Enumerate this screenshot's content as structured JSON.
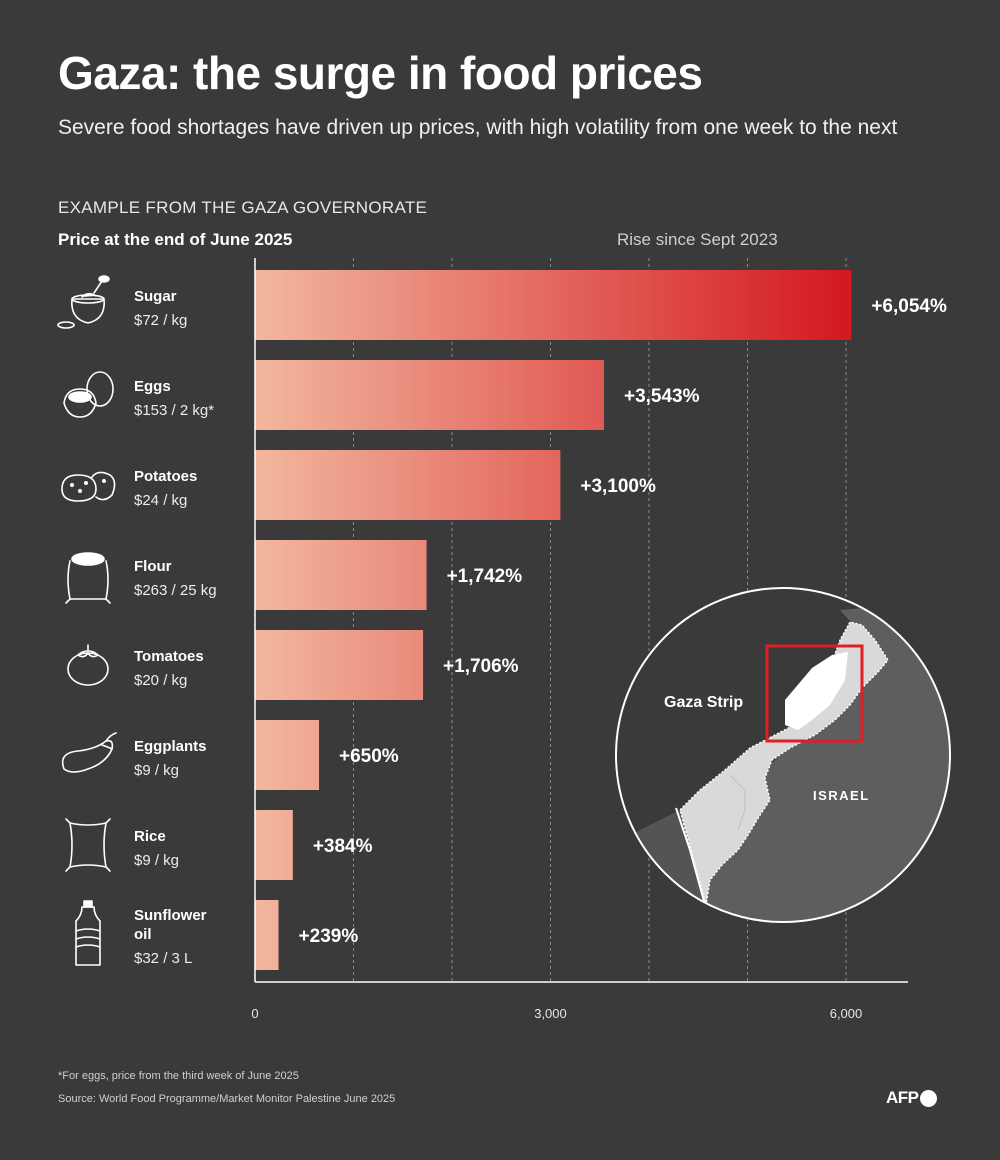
{
  "header": {
    "title": "Gaza: the surge in food prices",
    "subtitle": "Severe food shortages have driven up prices, with high volatility from one week to the next",
    "section": "EXAMPLE FROM THE GAZA GOVERNORATE",
    "price_header": "Price at the end of June 2025",
    "rise_header": "Rise since Sept 2023"
  },
  "colors": {
    "background": "#3a3a3a",
    "bar_light": "#f2b79f",
    "bar_dark": "#d41920",
    "inset_highlight": "#e01e25"
  },
  "chart_data": {
    "type": "bar",
    "orientation": "horizontal",
    "categories": [
      "Sugar",
      "Eggs",
      "Potatoes",
      "Flour",
      "Tomatoes",
      "Eggplants",
      "Rice",
      "Sunflower oil"
    ],
    "category_lines": [
      [
        "Sugar"
      ],
      [
        "Eggs"
      ],
      [
        "Potatoes"
      ],
      [
        "Flour"
      ],
      [
        "Tomatoes"
      ],
      [
        "Eggplants"
      ],
      [
        "Rice"
      ],
      [
        "Sunflower",
        "oil"
      ]
    ],
    "prices": [
      "$72 / kg",
      "$153 / 2 kg*",
      "$24 / kg",
      "$263 / 25 kg",
      "$20 / kg",
      "$9 / kg",
      "$9 / kg",
      "$32 / 3 L"
    ],
    "icons": [
      "sugar-bowl-icon",
      "eggs-icon",
      "potatoes-icon",
      "flour-sack-icon",
      "tomato-icon",
      "eggplant-icon",
      "rice-bag-icon",
      "oil-bottle-icon"
    ],
    "values": [
      6054,
      3543,
      3100,
      1742,
      1706,
      650,
      384,
      239
    ],
    "data_labels": [
      "+6,054%",
      "+3,543%",
      "+3,100%",
      "+1,742%",
      "+1,706%",
      "+650%",
      "+384%",
      "+239%"
    ],
    "xlim": [
      0,
      6500
    ],
    "xticks": [
      0,
      3000,
      6000
    ],
    "xtick_labels": [
      "0",
      "3,000",
      "6,000"
    ],
    "gridlines": [
      1000,
      2000,
      3000,
      4000,
      5000,
      6000
    ],
    "grid": true,
    "value_axis_title": "Rise since Sept 2023"
  },
  "inset_map": {
    "labels": [
      "Gaza Strip",
      "ISRAEL"
    ]
  },
  "footer": {
    "note": "*For eggs, price from the third week of June 2025",
    "source": "Source: World Food Programme/Market Monitor Palestine June 2025",
    "logo_text": "AFP"
  }
}
